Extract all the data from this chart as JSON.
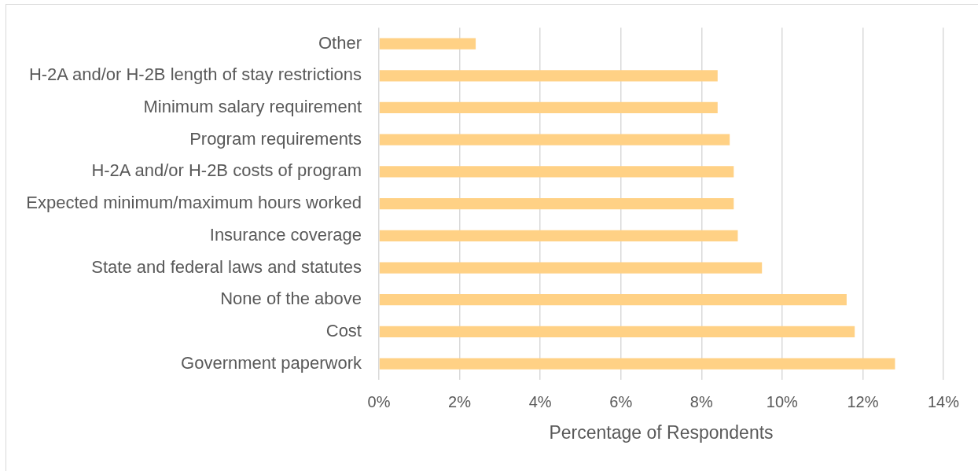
{
  "chart_data": {
    "type": "bar",
    "orientation": "horizontal",
    "categories": [
      "Other",
      "H-2A and/or H-2B length of stay restrictions",
      "Minimum salary requirement",
      "Program requirements",
      "H-2A and/or H-2B costs of program",
      "Expected minimum/maximum hours worked",
      "Insurance coverage",
      "State and federal laws and statutes",
      "None of the above",
      "Cost",
      "Government paperwork"
    ],
    "values": [
      2.4,
      8.4,
      8.4,
      8.7,
      8.8,
      8.8,
      8.9,
      9.5,
      11.6,
      11.8,
      12.8
    ],
    "color": "#ffd185",
    "xlabel": "Percentage of Respondents",
    "xlim": [
      0,
      14
    ],
    "xticks": [
      {
        "value": 0,
        "label": "0%"
      },
      {
        "value": 2,
        "label": "2%"
      },
      {
        "value": 4,
        "label": "4%"
      },
      {
        "value": 6,
        "label": "6%"
      },
      {
        "value": 8,
        "label": "8%"
      },
      {
        "value": 10,
        "label": "10%"
      },
      {
        "value": 12,
        "label": "12%"
      },
      {
        "value": 14,
        "label": "14%"
      }
    ],
    "grid": "x"
  }
}
